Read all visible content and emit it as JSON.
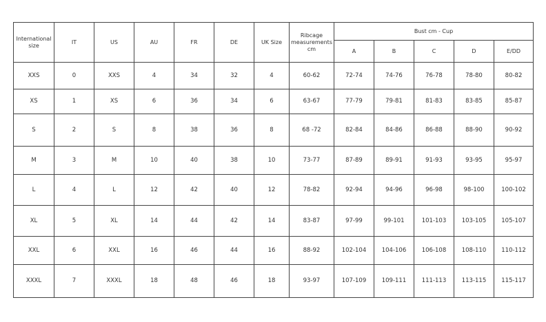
{
  "headers": {
    "international": "International size",
    "it": "IT",
    "us": "US",
    "au": "AU",
    "fr": "FR",
    "de": "DE",
    "uk": "UK Size",
    "ribcage": "Ribcage measurements cm",
    "bust": "Bust cm - Cup",
    "cups": [
      "A",
      "B",
      "C",
      "D",
      "E/DD"
    ]
  },
  "rows": [
    [
      "XXS",
      "0",
      "XXS",
      "4",
      "34",
      "32",
      "4",
      "60-62",
      "72-74",
      "74-76",
      "76-78",
      "78-80",
      "80-82"
    ],
    [
      "XS",
      "1",
      "XS",
      "6",
      "36",
      "34",
      "6",
      "63-67",
      "77-79",
      "79-81",
      "81-83",
      "83-85",
      "85-87"
    ],
    [
      "S",
      "2",
      "S",
      "8",
      "38",
      "36",
      "8",
      "68 -72",
      "82-84",
      "84-86",
      "86-88",
      "88-90",
      "90-92"
    ],
    [
      "M",
      "3",
      "M",
      "10",
      "40",
      "38",
      "10",
      "73-77",
      "87-89",
      "89-91",
      "91-93",
      "93-95",
      "95-97"
    ],
    [
      "L",
      "4",
      "L",
      "12",
      "42",
      "40",
      "12",
      "78-82",
      "92-94",
      "94-96",
      "96-98",
      "98-100",
      "100-102"
    ],
    [
      "XL",
      "5",
      "XL",
      "14",
      "44",
      "42",
      "14",
      "83-87",
      "97-99",
      "99-101",
      "101-103",
      "103-105",
      "105-107"
    ],
    [
      "XXL",
      "6",
      "XXL",
      "16",
      "46",
      "44",
      "16",
      "88-92",
      "102-104",
      "104-106",
      "106-108",
      "108-110",
      "110-112"
    ],
    [
      "XXXL",
      "7",
      "XXXL",
      "18",
      "48",
      "46",
      "18",
      "93-97",
      "107-109",
      "109-111",
      "111-113",
      "113-115",
      "115-117"
    ]
  ]
}
